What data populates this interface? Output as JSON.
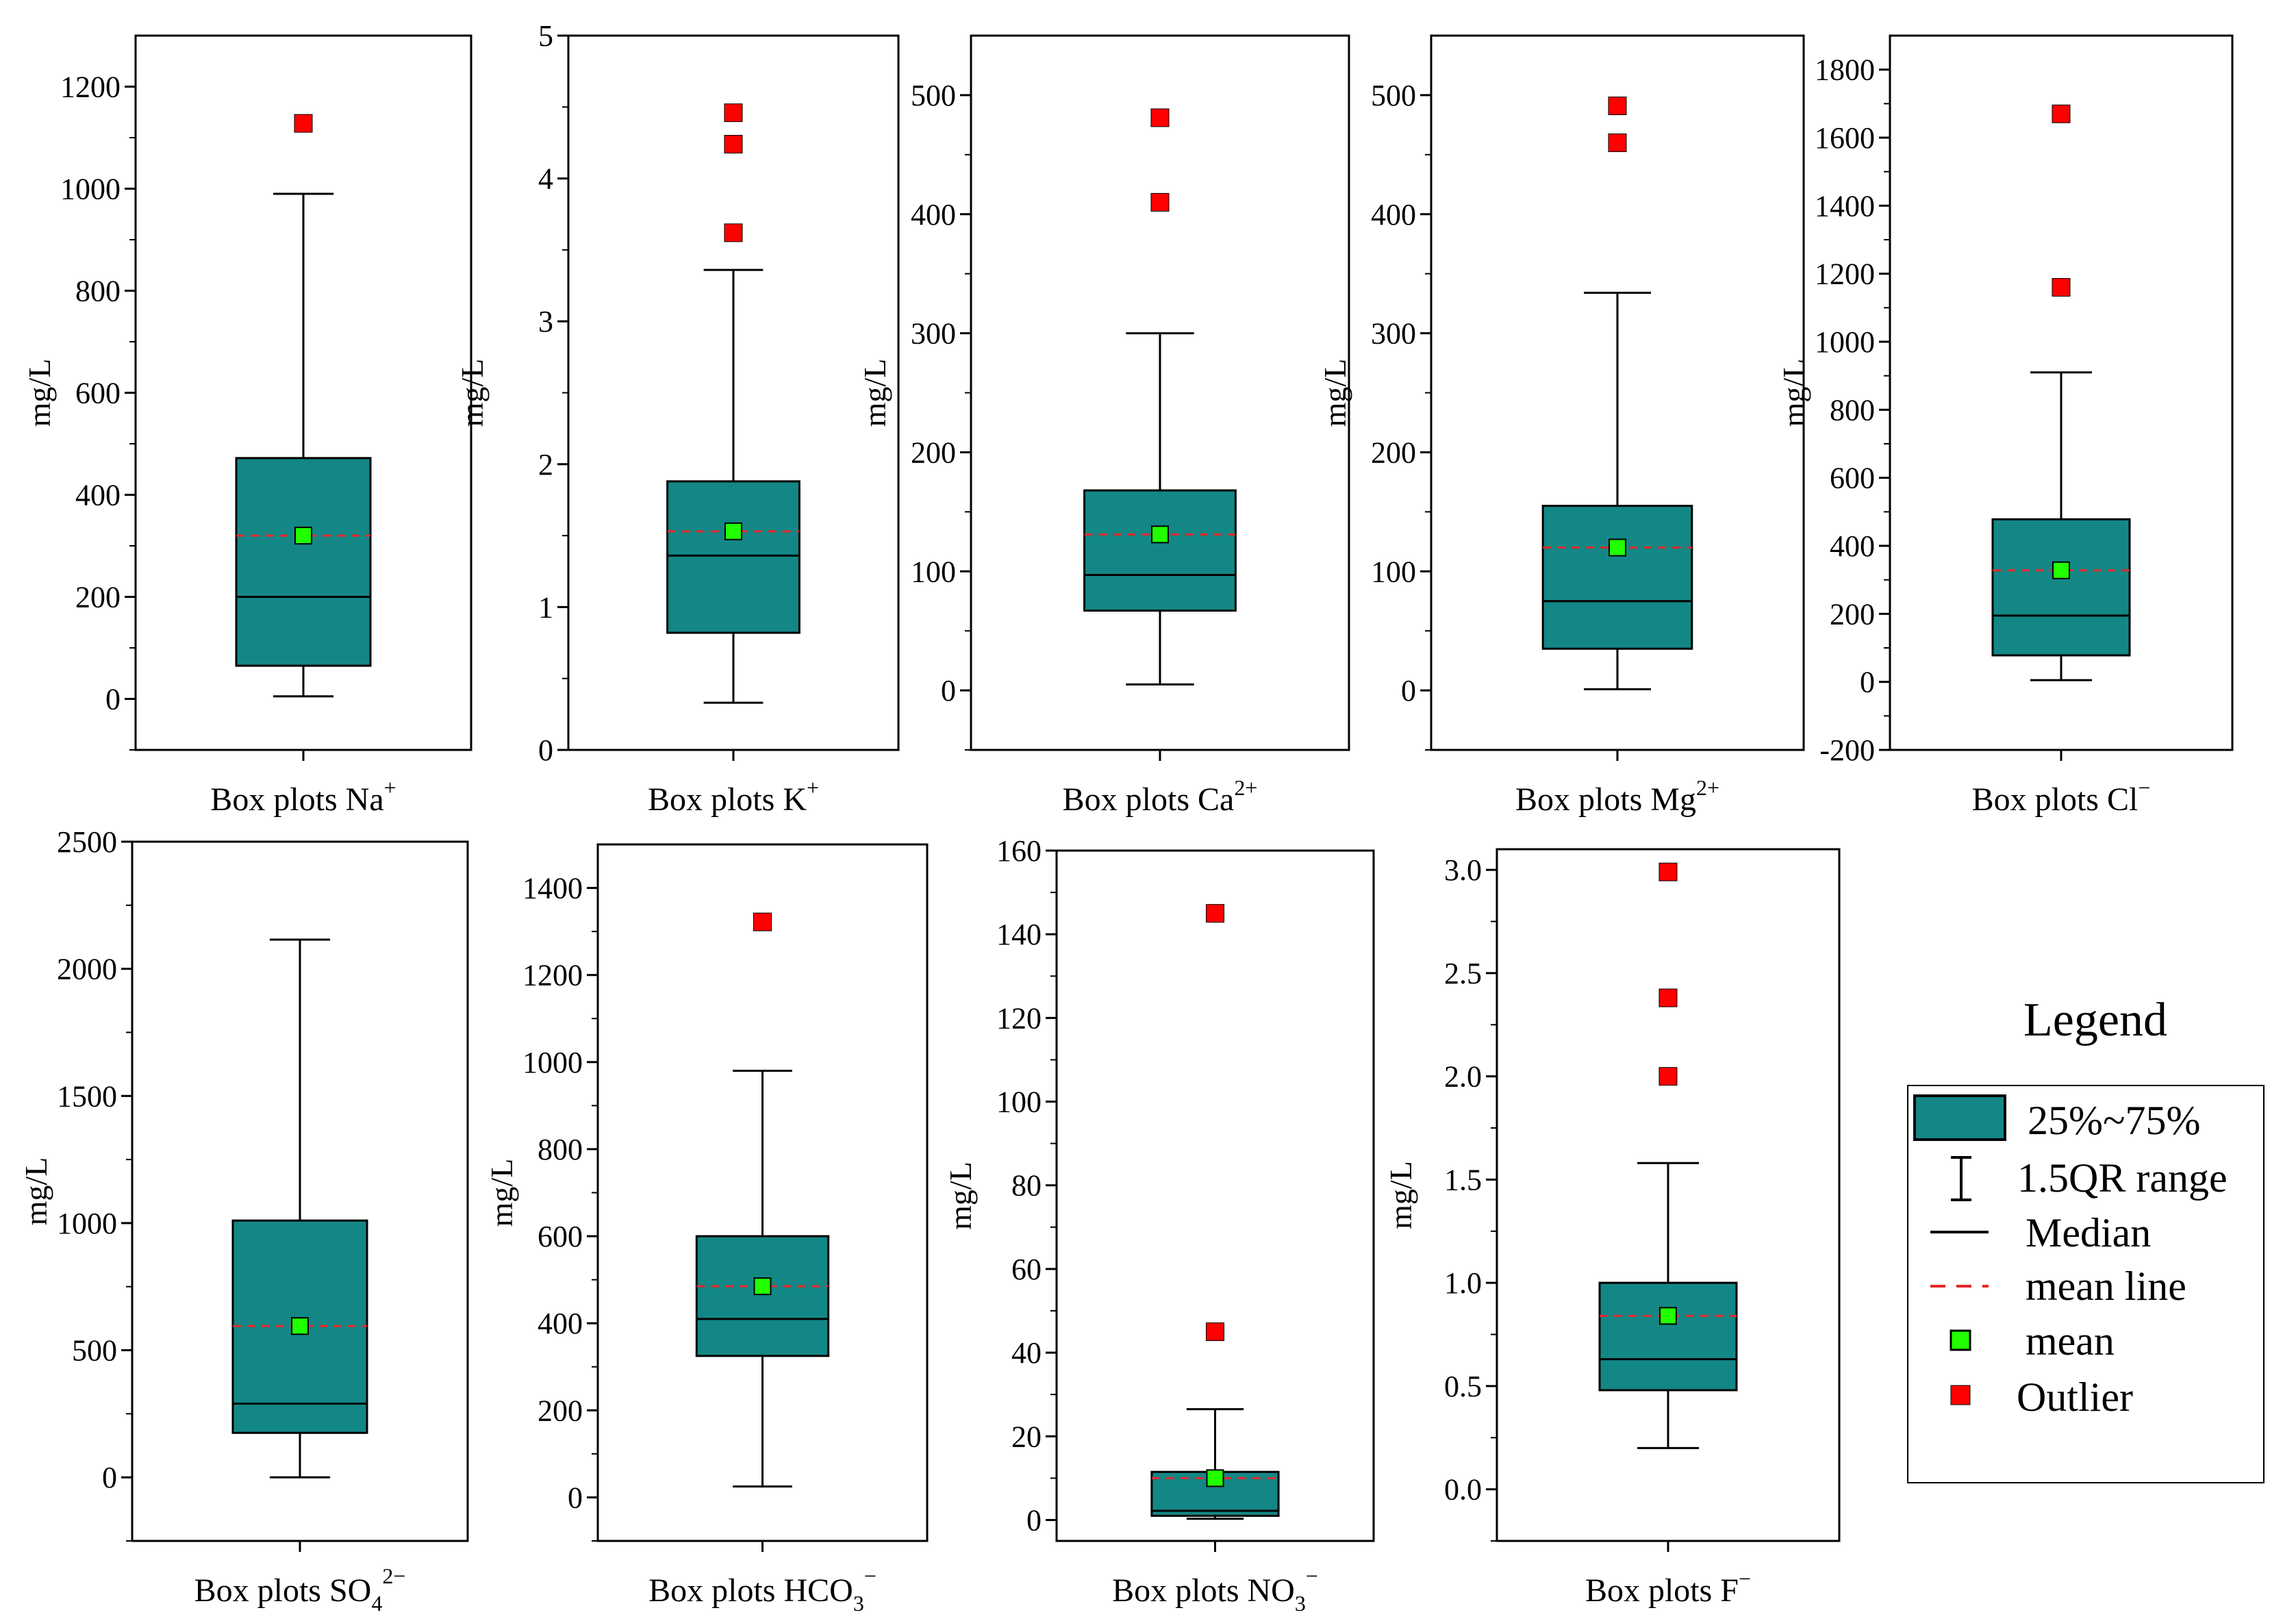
{
  "chart_data": [
    {
      "id": "na",
      "type": "box",
      "title_base": "Box plots Na",
      "title_sup": "+",
      "title_sub": "",
      "ylabel": "mg/L",
      "ylim": [
        -100,
        1300
      ],
      "yticks": [
        0,
        200,
        400,
        600,
        800,
        1000,
        1200
      ],
      "tick_decimals": 0,
      "whisker_low": 5,
      "q1": 65,
      "median": 200,
      "q3": 472,
      "whisker_high": 990,
      "mean": 320,
      "outliers": [
        1128
      ]
    },
    {
      "id": "k",
      "type": "box",
      "title_base": "Box plots K",
      "title_sup": "+",
      "title_sub": "",
      "ylabel": "mg/L",
      "ylim": [
        0,
        5
      ],
      "yticks": [
        0,
        1,
        2,
        3,
        4,
        5
      ],
      "tick_decimals": 0,
      "whisker_low": 0.33,
      "q1": 0.82,
      "median": 1.36,
      "q3": 1.88,
      "whisker_high": 3.36,
      "mean": 1.53,
      "outliers": [
        3.62,
        4.24,
        4.46
      ]
    },
    {
      "id": "ca",
      "type": "box",
      "title_base": "Box plots Ca",
      "title_sup": "2+",
      "title_sub": "",
      "ylabel": "mg/L",
      "ylim": [
        -50,
        550
      ],
      "yticks": [
        0,
        100,
        200,
        300,
        400,
        500
      ],
      "tick_decimals": 0,
      "whisker_low": 5,
      "q1": 67,
      "median": 97,
      "q3": 168,
      "whisker_high": 300,
      "mean": 131,
      "outliers": [
        410,
        481
      ]
    },
    {
      "id": "mg",
      "type": "box",
      "title_base": "Box plots Mg",
      "title_sup": "2+",
      "title_sub": "",
      "ylabel": "mg/L",
      "ylim": [
        -50,
        550
      ],
      "yticks": [
        0,
        100,
        200,
        300,
        400,
        500
      ],
      "tick_decimals": 0,
      "whisker_low": 1,
      "q1": 35,
      "median": 75,
      "q3": 155,
      "whisker_high": 334,
      "mean": 120,
      "outliers": [
        460,
        491
      ]
    },
    {
      "id": "cl",
      "type": "box",
      "title_base": "Box plots Cl",
      "title_sup": "−",
      "title_sub": "",
      "ylabel": "mg/L",
      "ylim": [
        -200,
        1900
      ],
      "yticks": [
        -200,
        0,
        200,
        400,
        600,
        800,
        1000,
        1200,
        1400,
        1600,
        1800
      ],
      "tick_decimals": 0,
      "whisker_low": 5,
      "q1": 78,
      "median": 195,
      "q3": 478,
      "whisker_high": 910,
      "mean": 328,
      "outliers": [
        1160,
        1670
      ]
    },
    {
      "id": "so4",
      "type": "box",
      "title_base": "Box plots SO",
      "title_sup": "2−",
      "title_sub": "4",
      "ylabel": "mg/L",
      "ylim": [
        -250,
        2500
      ],
      "yticks": [
        0,
        500,
        1000,
        1500,
        2000,
        2500
      ],
      "tick_decimals": 0,
      "whisker_low": 0,
      "q1": 175,
      "median": 290,
      "q3": 1010,
      "whisker_high": 2115,
      "mean": 595,
      "outliers": []
    },
    {
      "id": "hco3",
      "type": "box",
      "title_base": "Box plots HCO",
      "title_sup": "−",
      "title_sub": "3",
      "ylabel": "mg/L",
      "ylim": [
        -100,
        1500
      ],
      "yticks": [
        0,
        200,
        400,
        600,
        800,
        1000,
        1200,
        1400
      ],
      "tick_decimals": 0,
      "whisker_low": 25,
      "q1": 325,
      "median": 410,
      "q3": 600,
      "whisker_high": 980,
      "mean": 485,
      "outliers": [
        1322
      ]
    },
    {
      "id": "no3",
      "type": "box",
      "title_base": "Box plots NO",
      "title_sup": "−",
      "title_sub": "3",
      "ylabel": "mg/L",
      "ylim": [
        -5,
        160
      ],
      "yticks": [
        0,
        20,
        40,
        60,
        80,
        100,
        120,
        140,
        160
      ],
      "tick_decimals": 0,
      "whisker_low": 0.3,
      "q1": 1,
      "median": 2.2,
      "q3": 11.5,
      "whisker_high": 26.5,
      "mean": 10,
      "outliers": [
        45,
        145
      ]
    },
    {
      "id": "f",
      "type": "box",
      "title_base": "Box plots F",
      "title_sup": "−",
      "title_sub": "",
      "ylabel": "mg/L",
      "ylim": [
        -0.25,
        3.1
      ],
      "yticks": [
        0,
        0.5,
        1,
        1.5,
        2,
        2.5,
        3
      ],
      "tick_decimals": 1,
      "whisker_low": 0.2,
      "q1": 0.48,
      "median": 0.63,
      "q3": 1.0,
      "whisker_high": 1.58,
      "mean": 0.84,
      "outliers": [
        2.0,
        2.38,
        2.99
      ]
    }
  ],
  "legend": {
    "title": "Legend",
    "items": [
      {
        "key": "box",
        "label": "25%~75%"
      },
      {
        "key": "whisker",
        "label": "1.5QR range"
      },
      {
        "key": "median",
        "label": "Median"
      },
      {
        "key": "mean_line",
        "label": "mean line"
      },
      {
        "key": "mean",
        "label": "mean"
      },
      {
        "key": "outlier",
        "label": "Outlier"
      }
    ]
  },
  "colors": {
    "box_fill": "#138786",
    "box_stroke": "#000000",
    "mean_marker": "#22ff00",
    "mean_line": "#e8262a",
    "outlier": "#ff0000",
    "axis": "#000000"
  }
}
